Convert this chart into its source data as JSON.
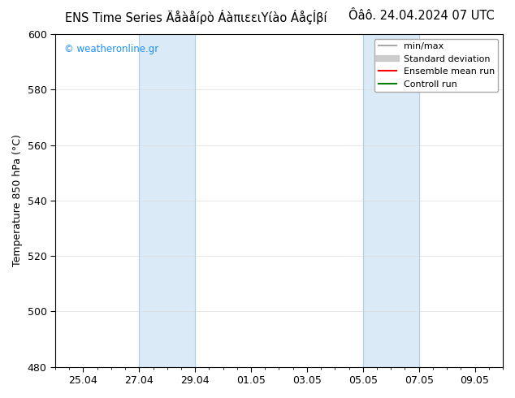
{
  "title_right": "Ôâô. 24.04.2024 07 UTC",
  "ylabel": "Temperature 850 hPa (°C)",
  "ylim": [
    480,
    600
  ],
  "yticks": [
    480,
    500,
    520,
    540,
    560,
    580,
    600
  ],
  "num_days": 16,
  "xtick_labels": [
    "25.04",
    "27.04",
    "29.04",
    "01.05",
    "03.05",
    "05.05",
    "07.05",
    "09.05"
  ],
  "xtick_positions": [
    1,
    3,
    5,
    7,
    9,
    11,
    13,
    15
  ],
  "shaded_bands": [
    {
      "x_start": 3,
      "x_end": 5,
      "color": "#daeaf7"
    },
    {
      "x_start": 11,
      "x_end": 13,
      "color": "#daeaf7"
    }
  ],
  "shaded_lines": [
    {
      "x": 3,
      "color": "#b0cfe8"
    },
    {
      "x": 5,
      "color": "#b0cfe8"
    },
    {
      "x": 11,
      "color": "#b0cfe8"
    },
    {
      "x": 13,
      "color": "#b0cfe8"
    }
  ],
  "watermark_text": "© weatheronline.gr",
  "watermark_color": "#1e90ff",
  "legend_items": [
    {
      "label": "min/max",
      "color": "#aaaaaa",
      "lw": 1.5,
      "ls": "-"
    },
    {
      "label": "Standard deviation",
      "color": "#cccccc",
      "lw": 6,
      "ls": "-"
    },
    {
      "label": "Ensemble mean run",
      "color": "red",
      "lw": 1.5,
      "ls": "-"
    },
    {
      "label": "Controll run",
      "color": "green",
      "lw": 1.5,
      "ls": "-"
    }
  ],
  "bg_color": "#ffffff",
  "plot_bg_color": "#ffffff",
  "border_color": "#000000",
  "grid_color": "#dddddd",
  "title_fontsize": 10.5,
  "axis_label_fontsize": 9,
  "tick_fontsize": 9
}
